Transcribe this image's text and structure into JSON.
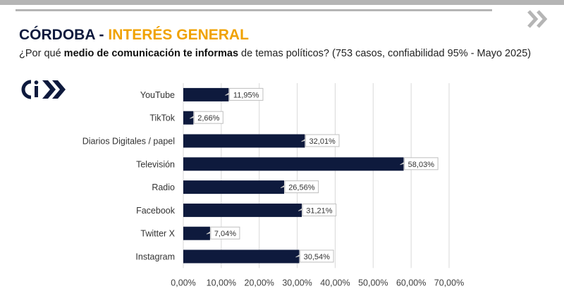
{
  "header": {
    "title_main": "CÓRDOBA - ",
    "title_accent": "INTERÉS GENERAL",
    "subtitle_pre": "¿Por qué ",
    "subtitle_bold": "medio de comunicación te informas",
    "subtitle_post": " de temas políticos? (753 casos, confiabilidad 95% - Mayo 2025)",
    "logo_icon": "ci-logo-icon",
    "nav_icon": "double-chevron-right-icon"
  },
  "colors": {
    "bar": "#0e1a3d",
    "accent": "#f0a202",
    "grid": "#d9d9d9",
    "label_box": "#bfbfbf"
  },
  "chart_data": {
    "type": "bar",
    "orientation": "horizontal",
    "categories": [
      "YouTube",
      "TikTok",
      "Diarios Digitales / papel",
      "Televisión",
      "Radio",
      "Facebook",
      "Twitter X",
      "Instagram"
    ],
    "values": [
      11.95,
      2.66,
      32.01,
      58.03,
      26.56,
      31.21,
      7.04,
      30.54
    ],
    "value_labels": [
      "11,95%",
      "2,66%",
      "32,01%",
      "58,03%",
      "26,56%",
      "31,21%",
      "7,04%",
      "30,54%"
    ],
    "xlim": [
      0,
      70
    ],
    "xticks": [
      "0,00%",
      "10,00%",
      "20,00%",
      "30,00%",
      "40,00%",
      "50,00%",
      "60,00%",
      "70,00%"
    ],
    "grid": true,
    "legend": "none"
  }
}
